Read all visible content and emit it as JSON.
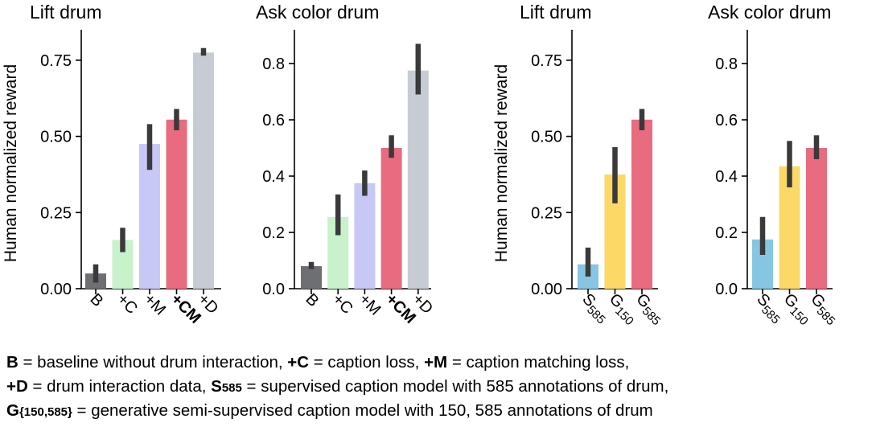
{
  "colors": {
    "B": "#6e6f73",
    "C": "#c7f2cc",
    "M": "#c8c8f7",
    "CM": "#e96b7f",
    "D": "#c7ccd4",
    "S585": "#87c6e2",
    "G150": "#fcd966",
    "G585": "#e96b7f",
    "errorbar": "#3a3a3a"
  },
  "chart_data": [
    {
      "type": "bar",
      "title": "Lift drum",
      "ylabel": "Human normalized reward",
      "ylim": [
        0,
        0.85
      ],
      "yticks": [
        "0.00",
        "0.25",
        "0.50",
        "0.75"
      ],
      "ytick_values": [
        0,
        0.25,
        0.5,
        0.75
      ],
      "categories": [
        "B",
        "+C",
        "+M",
        "+CM",
        "+D"
      ],
      "bold_categories": [
        "+CM"
      ],
      "color_keys": [
        "B",
        "C",
        "M",
        "CM",
        "D"
      ],
      "values": [
        0.05,
        0.16,
        0.475,
        0.555,
        0.775
      ],
      "error_low": [
        0.02,
        0.12,
        0.39,
        0.52,
        0.765
      ],
      "error_high": [
        0.08,
        0.2,
        0.54,
        0.59,
        0.79
      ]
    },
    {
      "type": "bar",
      "title": "Ask color drum",
      "ylabel": "",
      "ylim": [
        0,
        0.92
      ],
      "yticks": [
        "0.0",
        "0.2",
        "0.4",
        "0.6",
        "0.8"
      ],
      "ytick_values": [
        0,
        0.2,
        0.4,
        0.6,
        0.8
      ],
      "categories": [
        "B",
        "+C",
        "+M",
        "+CM",
        "+D"
      ],
      "bold_categories": [
        "+CM"
      ],
      "color_keys": [
        "B",
        "C",
        "M",
        "CM",
        "D"
      ],
      "values": [
        0.08,
        0.255,
        0.375,
        0.5,
        0.775
      ],
      "error_low": [
        0.07,
        0.19,
        0.33,
        0.465,
        0.69
      ],
      "error_high": [
        0.095,
        0.335,
        0.42,
        0.545,
        0.87
      ]
    },
    {
      "type": "bar",
      "title": "Lift drum",
      "ylabel": "Human normalized reward",
      "ylim": [
        0,
        0.85
      ],
      "yticks": [
        "0.00",
        "0.25",
        "0.50",
        "0.75"
      ],
      "ytick_values": [
        0,
        0.25,
        0.5,
        0.75
      ],
      "categories": [
        {
          "main": "S",
          "sub": "585"
        },
        {
          "main": "G",
          "sub": "150"
        },
        {
          "main": "G",
          "sub": "585"
        }
      ],
      "bold_categories": [],
      "color_keys": [
        "S585",
        "G150",
        "G585"
      ],
      "values": [
        0.08,
        0.375,
        0.555
      ],
      "error_low": [
        0.04,
        0.28,
        0.52
      ],
      "error_high": [
        0.135,
        0.465,
        0.59
      ]
    },
    {
      "type": "bar",
      "title": "Ask color drum",
      "ylabel": "",
      "ylim": [
        0,
        0.92
      ],
      "yticks": [
        "0.0",
        "0.2",
        "0.4",
        "0.6",
        "0.8"
      ],
      "ytick_values": [
        0,
        0.2,
        0.4,
        0.6,
        0.8
      ],
      "categories": [
        {
          "main": "S",
          "sub": "585"
        },
        {
          "main": "G",
          "sub": "150"
        },
        {
          "main": "G",
          "sub": "585"
        }
      ],
      "bold_categories": [],
      "color_keys": [
        "S585",
        "G150",
        "G585"
      ],
      "values": [
        0.175,
        0.435,
        0.5
      ],
      "error_low": [
        0.12,
        0.36,
        0.46
      ],
      "error_high": [
        0.255,
        0.525,
        0.545
      ]
    }
  ],
  "caption": {
    "line1": [
      {
        "bold": "B",
        "text": " = baseline without drum interaction, "
      },
      {
        "bold": "+C",
        "text": " = caption loss, "
      },
      {
        "bold": "+M",
        "text": " = caption matching loss,"
      }
    ],
    "line2": [
      {
        "bold": "+D",
        "text": " = drum interaction data, "
      },
      {
        "bold": "S",
        "sub": "585",
        "text": " = supervised caption model with 585 annotations of drum,"
      }
    ],
    "line3": [
      {
        "bold": "G",
        "sub": "{150,585}",
        "text": " = generative semi-supervised caption model with 150, 585 annotations of drum"
      }
    ]
  }
}
